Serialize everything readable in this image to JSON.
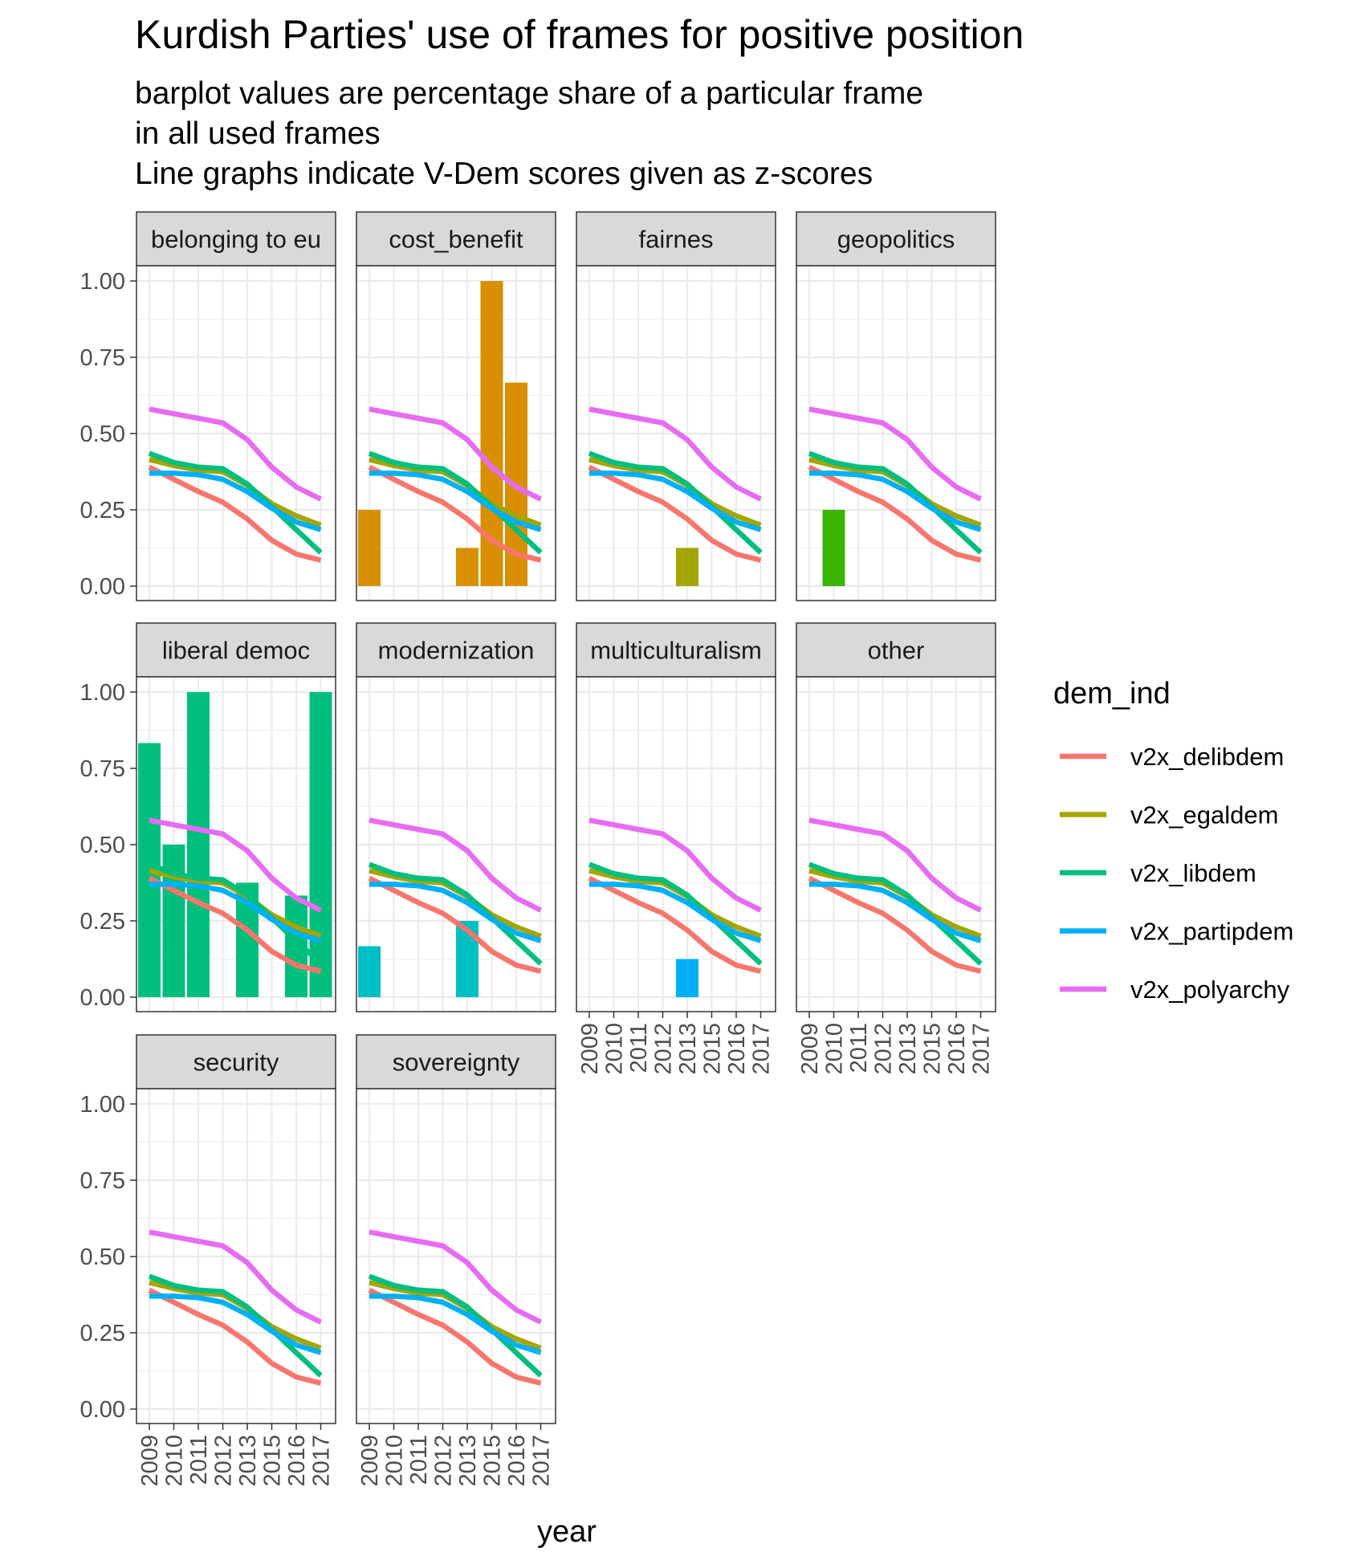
{
  "chart_title": "Kurdish Parties' use of frames for positive position",
  "chart_subtitle": "barplot values are percentage share of a particular frame\nin all used frames\nLine graphs indicate V-Dem scores given as z-scores",
  "chart_data": {
    "type": "bar",
    "title": "Kurdish Parties' use of frames for positive position",
    "subtitle": "barplot values are percentage share of a particular frame in all used frames Line graphs indicate V-Dem scores given as z-scores",
    "xlabel": "year",
    "ylabel": "",
    "ylim": [
      0,
      1
    ],
    "y_ticks": [
      "0.00",
      "0.25",
      "0.50",
      "0.75",
      "1.00"
    ],
    "y_tick_values": [
      0,
      0.25,
      0.5,
      0.75,
      1
    ],
    "categories": [
      "2009",
      "2010",
      "2011",
      "2012",
      "2013",
      "2015",
      "2016",
      "2017"
    ],
    "grid": true,
    "legend_position": "right",
    "legend_title": "dem_ind",
    "facets": [
      {
        "label": "belonging to eu",
        "color": "#F8766D",
        "values": [
          0,
          0,
          0,
          0,
          0,
          0,
          0,
          0
        ]
      },
      {
        "label": "cost_benefit",
        "color": "#D89000",
        "values": [
          0.25,
          0,
          0,
          0,
          0.125,
          1.0,
          0.667,
          0
        ]
      },
      {
        "label": "fairnes",
        "color": "#A3A500",
        "values": [
          0,
          0,
          0,
          0,
          0.125,
          0,
          0,
          0
        ]
      },
      {
        "label": "geopolitics",
        "color": "#39B600",
        "values": [
          0,
          0.25,
          0,
          0,
          0,
          0,
          0,
          0
        ]
      },
      {
        "label": "liberal democ",
        "color": "#00BF7D",
        "values": [
          0.833,
          0.5,
          1.0,
          0,
          0.375,
          0,
          0.333,
          1.0
        ]
      },
      {
        "label": "modernization",
        "color": "#00BFC4",
        "values": [
          0.167,
          0,
          0,
          0,
          0.25,
          0,
          0,
          0
        ]
      },
      {
        "label": "multiculturalism",
        "color": "#00B0F6",
        "values": [
          0,
          0,
          0,
          0,
          0.125,
          0,
          0,
          0
        ]
      },
      {
        "label": "other",
        "color": "#9590FF",
        "values": [
          0,
          0,
          0,
          0,
          0,
          0,
          0,
          0
        ]
      },
      {
        "label": "security",
        "color": "#E76BF3",
        "values": [
          0,
          0,
          0,
          0,
          0,
          0,
          0,
          0
        ]
      },
      {
        "label": "sovereignty",
        "color": "#FF62BC",
        "values": [
          0,
          0,
          0,
          0,
          0,
          0,
          0,
          0
        ]
      }
    ],
    "series": [
      {
        "name": "v2x_delibdem",
        "color": "#F8766D",
        "type": "line",
        "values": [
          0.39,
          0.35,
          0.31,
          0.275,
          0.22,
          0.15,
          0.105,
          0.085
        ]
      },
      {
        "name": "v2x_egaldem",
        "color": "#A3A500",
        "type": "line",
        "values": [
          0.415,
          0.395,
          0.38,
          0.375,
          0.33,
          0.27,
          0.23,
          0.2
        ]
      },
      {
        "name": "v2x_libdem",
        "color": "#00BF7D",
        "type": "line",
        "values": [
          0.435,
          0.405,
          0.39,
          0.385,
          0.335,
          0.26,
          0.185,
          0.11
        ]
      },
      {
        "name": "v2x_partipdem",
        "color": "#00B0F6",
        "type": "line",
        "values": [
          0.37,
          0.37,
          0.365,
          0.35,
          0.31,
          0.255,
          0.21,
          0.185
        ]
      },
      {
        "name": "v2x_polyarchy",
        "color": "#E76BF3",
        "type": "line",
        "values": [
          0.58,
          0.565,
          0.55,
          0.535,
          0.48,
          0.39,
          0.325,
          0.285
        ]
      }
    ]
  }
}
